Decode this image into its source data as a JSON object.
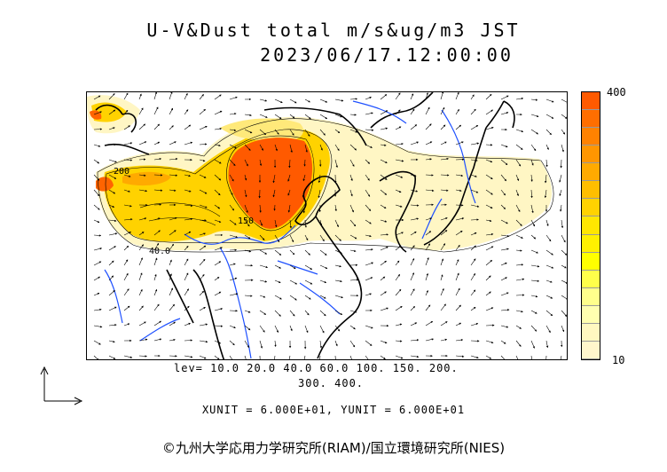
{
  "title": {
    "line1": "U-V&Dust total m/s&ug/m3 JST",
    "line2": "2023/06/17.12:00:00"
  },
  "scale": {
    "max_label": "400",
    "min_label": "10",
    "colors": [
      "#ff5a00",
      "#ff6e00",
      "#ff8200",
      "#ff9600",
      "#ffaa00",
      "#ffbe00",
      "#ffd200",
      "#ffe600",
      "#fff000",
      "#ffff00",
      "#ffff4a",
      "#ffff8c",
      "#ffffb0",
      "#fff8c0",
      "#fff6cc"
    ]
  },
  "contour_labels": {
    "l200": "200",
    "l150": "150",
    "l40": "40.0"
  },
  "levels": {
    "line1": "lev= 10.0 20.0 40.0 60.0 100. 150. 200.",
    "line2": "300. 400."
  },
  "units": "XUNIT = 6.000E+01, YUNIT = 6.000E+01",
  "copyright": "©九州大学応用力学研究所(RIAM)/国立環境研究所(NIES)",
  "colors": {
    "coast": "#000000",
    "river": "#1e50ff",
    "dust_low": "#fff6c4",
    "dust_mid": "#ffd200",
    "dust_high": "#ff6400"
  }
}
